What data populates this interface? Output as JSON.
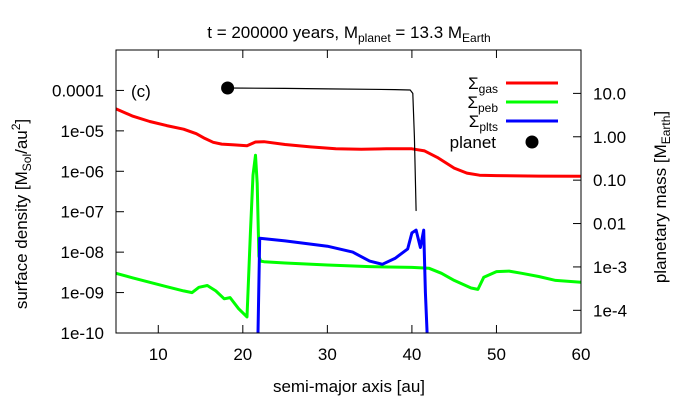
{
  "chart_data": {
    "type": "line",
    "title": {
      "prefix": "t = 200000 years, M",
      "sub1": "planet",
      "mid": " = 13.3 M",
      "sub2": "Earth"
    },
    "panel_label": "(c)",
    "xlabel": "semi-major axis [au]",
    "ylabel": {
      "prefix": "surface density [M",
      "sub": "Sol",
      "mid": "/au",
      "sup": "2",
      "suffix": "]"
    },
    "y2label": {
      "prefix": "planetary mass [M",
      "sub": "Earth",
      "suffix": "]"
    },
    "xlim": [
      5,
      60
    ],
    "ylim": [
      1e-10,
      0.001
    ],
    "y2lim": [
      3e-05,
      100
    ],
    "scale": {
      "y": "log",
      "y2": "log"
    },
    "grid": false,
    "legend_position": "top-right",
    "x_ticks": [
      {
        "value": 10,
        "label": "10"
      },
      {
        "value": 20,
        "label": "20"
      },
      {
        "value": 30,
        "label": "30"
      },
      {
        "value": 40,
        "label": "40"
      },
      {
        "value": 50,
        "label": "50"
      },
      {
        "value": 60,
        "label": "60"
      }
    ],
    "y_ticks": [
      {
        "value": 0.0001,
        "label": "0.0001"
      },
      {
        "value": 1e-05,
        "label": "1e-05"
      },
      {
        "value": 1e-06,
        "label": "1e-06"
      },
      {
        "value": 1e-07,
        "label": "1e-07"
      },
      {
        "value": 1e-08,
        "label": "1e-08"
      },
      {
        "value": 1e-09,
        "label": "1e-09"
      },
      {
        "value": 1e-10,
        "label": "1e-10"
      }
    ],
    "y2_ticks": [
      {
        "value": 10,
        "label": "10.0"
      },
      {
        "value": 1,
        "label": "1.00"
      },
      {
        "value": 0.1,
        "label": "0.10"
      },
      {
        "value": 0.01,
        "label": "0.01"
      },
      {
        "value": 0.001,
        "label": "1e-3"
      },
      {
        "value": 0.0001,
        "label": "1e-4"
      }
    ],
    "series": [
      {
        "name": "Σgas",
        "legend_main": "Σ",
        "legend_sub": "gas",
        "color": "#ff0000",
        "axis": "y",
        "x": [
          5,
          7,
          9,
          11,
          13,
          14.5,
          15.5,
          16.5,
          17.5,
          19,
          20.5,
          21.5,
          22.5,
          25,
          28,
          31,
          34,
          37,
          40,
          41.5,
          43,
          45,
          46.5,
          48,
          50,
          55,
          60
        ],
        "y": [
          3.5e-05,
          2.3e-05,
          1.7e-05,
          1.35e-05,
          1.1e-05,
          8.5e-06,
          6.5e-06,
          5.2e-06,
          4.7e-06,
          4.5e-06,
          4.3e-06,
          5.3e-06,
          5.4e-06,
          4.6e-06,
          4e-06,
          3.6e-06,
          3.5e-06,
          3.6e-06,
          3.6e-06,
          3.2e-06,
          2.2e-06,
          1.2e-06,
          9e-07,
          8e-07,
          7.8e-07,
          7.6e-07,
          7.5e-07
        ]
      },
      {
        "name": "Σpeb",
        "legend_main": "Σ",
        "legend_sub": "peb",
        "color": "#00ff00",
        "axis": "y",
        "x": [
          5,
          7,
          9,
          11,
          13,
          14,
          14.8,
          15.8,
          16.8,
          17.8,
          18.5,
          19.5,
          20.5,
          20.9,
          21.2,
          21.5,
          21.7,
          21.9,
          22.1,
          22.5,
          25,
          30,
          35,
          40,
          42,
          43.5,
          45,
          47,
          47.8,
          48.5,
          50,
          51.5,
          53,
          55,
          57,
          60
        ],
        "y": [
          3e-09,
          2.3e-09,
          1.8e-09,
          1.4e-09,
          1.1e-09,
          1e-09,
          1.35e-09,
          1.5e-09,
          1.1e-09,
          7e-10,
          7.5e-10,
          4e-10,
          2.5e-10,
          3e-08,
          8e-07,
          2.5e-06,
          5e-07,
          8e-09,
          6e-09,
          5.8e-09,
          5.4e-09,
          4.8e-09,
          4.4e-09,
          4.2e-09,
          4e-09,
          3e-09,
          2e-09,
          1.3e-09,
          1.2e-09,
          2.4e-09,
          3.3e-09,
          3.4e-09,
          3e-09,
          2.5e-09,
          2e-09,
          1.8e-09
        ]
      },
      {
        "name": "Σplts",
        "legend_main": "Σ",
        "legend_sub": "plts",
        "color": "#0000ff",
        "axis": "y",
        "x": [
          21.8,
          22,
          25,
          30,
          33,
          35,
          36.5,
          38,
          39.5,
          40,
          40.5,
          41,
          41.4,
          41.6,
          41.8
        ],
        "y": [
          1e-10,
          2.2e-08,
          1.9e-08,
          1.4e-08,
          1e-08,
          6e-09,
          5e-09,
          7e-09,
          1.2e-08,
          3e-08,
          3.5e-08,
          1.3e-08,
          3.5e-08,
          1e-09,
          1e-10
        ]
      },
      {
        "name": "planet track",
        "color": "#000000",
        "axis": "y2",
        "x": [
          18.2,
          25,
          30,
          35,
          38,
          39.8,
          40.1,
          40.3,
          40.5
        ],
        "y": [
          13.3,
          13,
          12.7,
          12.4,
          12.2,
          12,
          10,
          1,
          0.02
        ]
      }
    ],
    "planet": {
      "name": "planet",
      "legend_label": "planet",
      "x": 18.2,
      "mass": 13.3,
      "color": "#000000"
    }
  }
}
